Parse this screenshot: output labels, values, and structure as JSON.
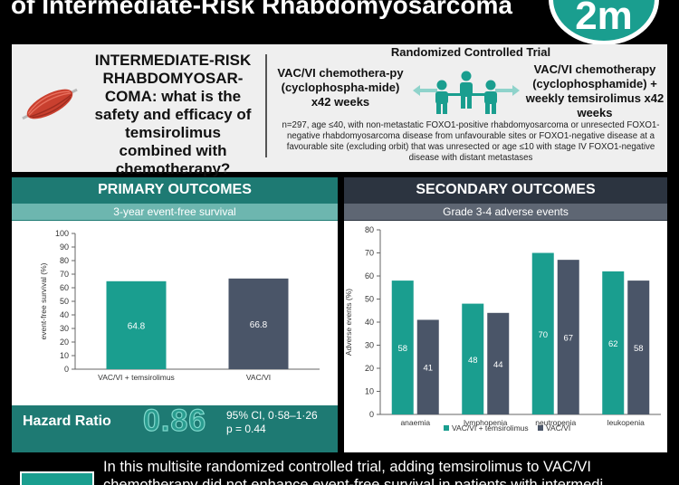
{
  "header": {
    "title": "of Intermediate-Risk Rhabdomyosarcoma",
    "logo_text": "2m"
  },
  "info": {
    "question": "INTERMEDIATE-RISK RHABDOMYOSAR-COMA: what is the safety and efficacy of temsirolimus combined with chemotherapy?",
    "rct_title": "Randomized Controlled Trial",
    "arm1": "VAC/VI chemothera-py (cyclophospha-mide) x42 weeks",
    "arm2": "VAC/VI chemotherapy (cyclophosphamide) + weekly temsirolimus x42 weeks",
    "criteria": "n=297, age ≤40, with non-metastatic FOXO1-positive rhabdomyosarcoma or unresected FOXO1-negative rhabdomyosarcoma disease from unfavourable sites or FOXO1-negative disease at a favourable site (excluding orbit) that was unresected or age ≤10 with stage IV FOXO1-negative disease with distant metastases",
    "icons": [
      "muscle-icon",
      "people-group-icon"
    ]
  },
  "primary": {
    "title": "PRIMARY OUTCOMES",
    "hazard_ratio_label": "Hazard Ratio",
    "hazard_ratio_value": "0.86",
    "ci": "95% CI, 0·58–1·26",
    "p": "p = 0.44"
  },
  "secondary": {
    "title": "SECONDARY OUTCOMES"
  },
  "colors": {
    "teal": "#1a9e8f",
    "slate": "#4a5568",
    "primary_panel": "#1e7a73",
    "secondary_panel": "#2c3440"
  },
  "conclusion": {
    "line1": "In this multisite randomized controlled trial, adding temsirolimus to VAC/VI",
    "line2": "chemotherapy did not enhance event-free survival in patients with intermedi"
  },
  "chart_data": [
    {
      "type": "bar",
      "title": "3-year event-free survival",
      "ylabel": "event-free survival (%)",
      "ylim": [
        0,
        100
      ],
      "yticks": [
        0,
        10,
        20,
        30,
        40,
        50,
        60,
        70,
        80,
        90,
        100
      ],
      "categories": [
        "VAC/VI + temsirolimus",
        "VAC/VI"
      ],
      "values": [
        64.8,
        66.8
      ],
      "value_labels": [
        "64.8",
        "66.8"
      ],
      "colors": [
        "#1a9e8f",
        "#4a5568"
      ],
      "grid": false
    },
    {
      "type": "bar",
      "title": "Grade 3-4 adverse events",
      "ylabel": "Adverse events (%)",
      "ylim": [
        0,
        80
      ],
      "yticks": [
        0,
        10,
        20,
        30,
        40,
        50,
        60,
        70,
        80
      ],
      "categories": [
        "anaemia",
        "lymphopenia",
        "neutropenia",
        "leukopenia"
      ],
      "series": [
        {
          "name": "VAC/VI + temsirolimus",
          "values": [
            58,
            48,
            70,
            62
          ],
          "color": "#1a9e8f"
        },
        {
          "name": "VAC/VI",
          "values": [
            41,
            44,
            67,
            58
          ],
          "color": "#4a5568"
        }
      ],
      "legend": "bottom",
      "grid": false
    }
  ]
}
